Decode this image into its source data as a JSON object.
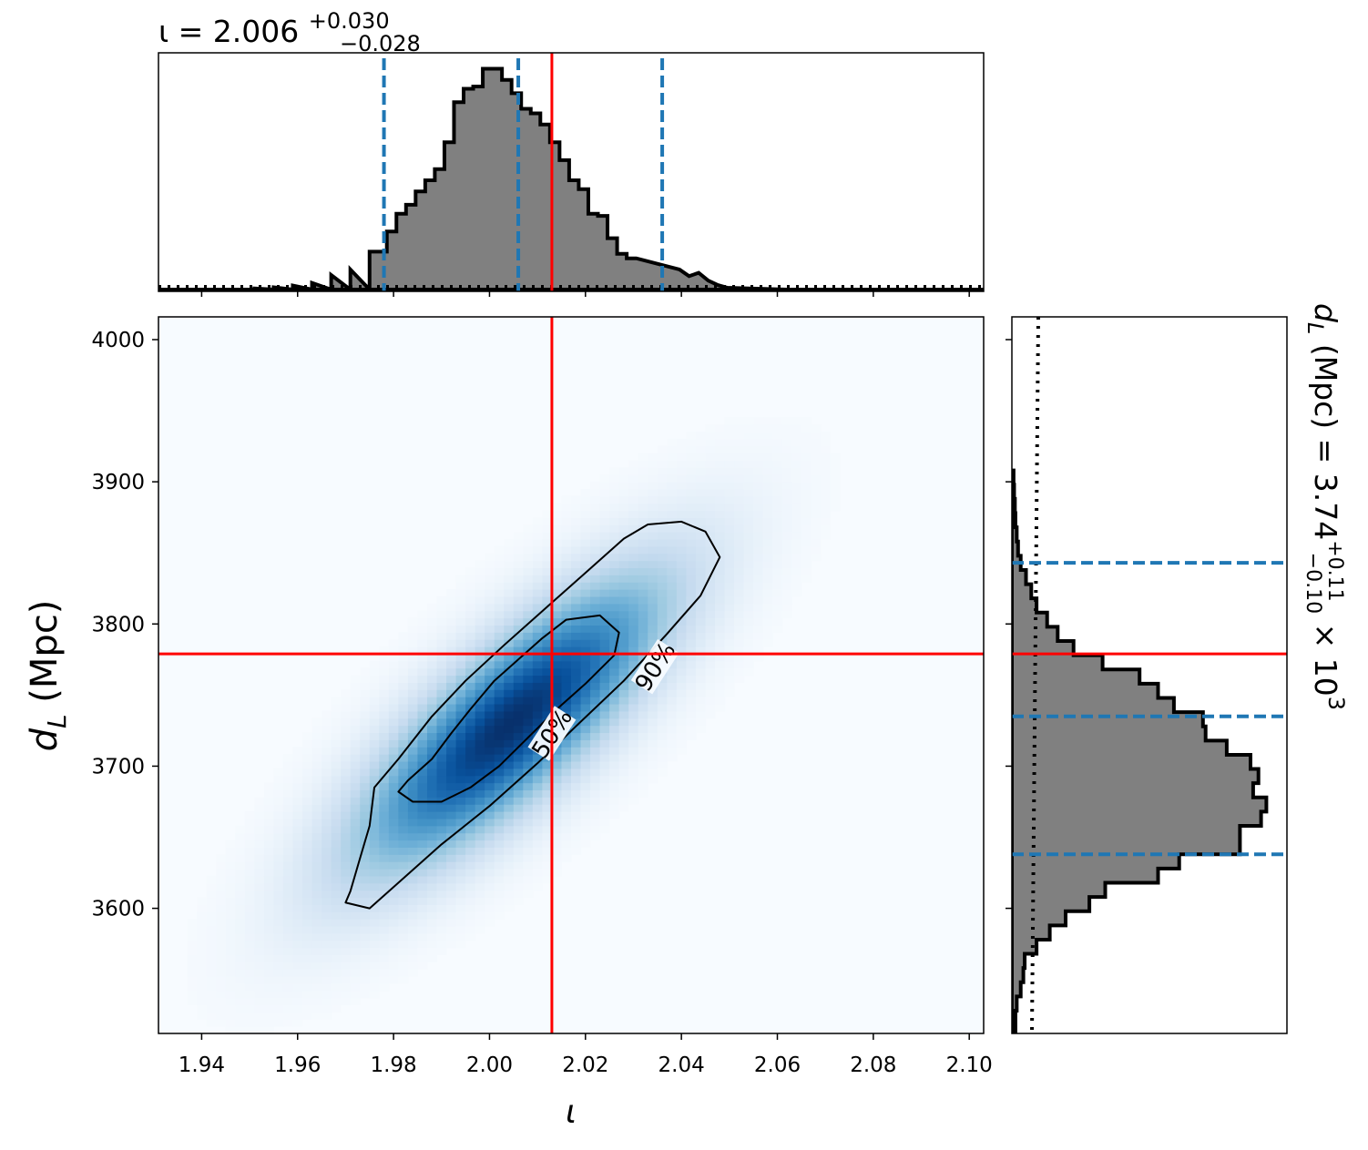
{
  "chart_data": [
    {
      "panel": "marginal-iota",
      "type": "histogram",
      "title_parts": {
        "prefix": "ι = 2.006",
        "sup": "+0.030",
        "sub": "−0.028"
      },
      "xlim": [
        1.931,
        2.103
      ],
      "xticks": [
        1.94,
        1.96,
        1.98,
        2.0,
        2.02,
        2.04,
        2.06,
        2.08,
        2.1
      ],
      "bin_edges_start": 1.9786,
      "bin_width": 0.002,
      "heights": [
        0.26,
        0.34,
        0.38,
        0.44,
        0.49,
        0.54,
        0.66,
        0.84,
        0.9,
        0.91,
        0.99,
        0.99,
        0.94,
        0.88,
        0.81,
        0.79,
        0.74,
        0.66,
        0.58,
        0.49,
        0.45,
        0.34,
        0.33,
        0.23,
        0.16,
        0.14
      ],
      "left_tail": [
        [
          1.951,
          0.005
        ],
        [
          1.955,
          0.01
        ],
        [
          1.959,
          0.018
        ],
        [
          1.963,
          0.03
        ],
        [
          1.967,
          0.065
        ],
        [
          1.971,
          0.09
        ],
        [
          1.975,
          0.17
        ]
      ],
      "right_tail": [
        [
          2.0396,
          0.09
        ],
        [
          2.0416,
          0.06
        ],
        [
          2.0436,
          0.075
        ],
        [
          2.0456,
          0.04
        ],
        [
          2.0476,
          0.02
        ],
        [
          2.0496,
          0.008
        ],
        [
          2.0556,
          0.004
        ]
      ],
      "quantiles": [
        1.978,
        2.006,
        2.036
      ],
      "truth": 2.013,
      "prior_level": 0.012
    },
    {
      "panel": "joint-density",
      "type": "heatmap",
      "xlabel": "ι",
      "ylabel_parts": {
        "base": "d",
        "sub": "L",
        "rest": " (Mpc)"
      },
      "xlim": [
        1.931,
        2.103
      ],
      "ylim": [
        3512,
        4016
      ],
      "xticks": [
        1.94,
        1.96,
        1.98,
        2.0,
        2.02,
        2.04,
        2.06,
        2.08,
        2.1
      ],
      "yticks": [
        3600,
        3700,
        3800,
        3900,
        4000
      ],
      "density": {
        "mean_x": 2.0045,
        "mean_y": 3730,
        "sd_x": 0.0195,
        "sd_y": 62,
        "corr": 0.8
      },
      "contours": [
        {
          "label": "50%",
          "points": [
            [
              1.983,
              3690
            ],
            [
              1.988,
              3705
            ],
            [
              1.992,
              3723
            ],
            [
              1.996,
              3740
            ],
            [
              2.001,
              3760
            ],
            [
              2.006,
              3775
            ],
            [
              2.011,
              3790
            ],
            [
              2.016,
              3803
            ],
            [
              2.023,
              3806
            ],
            [
              2.027,
              3794
            ],
            [
              2.026,
              3778
            ],
            [
              2.02,
              3758
            ],
            [
              2.014,
              3740
            ],
            [
              2.008,
              3720
            ],
            [
              2.002,
              3700
            ],
            [
              1.996,
              3685
            ],
            [
              1.99,
              3675
            ],
            [
              1.984,
              3675
            ],
            [
              1.981,
              3682
            ]
          ]
        },
        {
          "label": "90%",
          "points": [
            [
              1.971,
              3612
            ],
            [
              1.973,
              3635
            ],
            [
              1.975,
              3658
            ],
            [
              1.976,
              3685
            ],
            [
              1.981,
              3705
            ],
            [
              1.988,
              3735
            ],
            [
              1.995,
              3760
            ],
            [
              2.003,
              3785
            ],
            [
              2.012,
              3812
            ],
            [
              2.02,
              3836
            ],
            [
              2.028,
              3860
            ],
            [
              2.033,
              3870
            ],
            [
              2.04,
              3872
            ],
            [
              2.045,
              3865
            ],
            [
              2.048,
              3847
            ],
            [
              2.044,
              3820
            ],
            [
              2.037,
              3793
            ],
            [
              2.028,
              3760
            ],
            [
              2.018,
              3728
            ],
            [
              2.01,
              3702
            ],
            [
              2.0,
              3672
            ],
            [
              1.99,
              3645
            ],
            [
              1.981,
              3618
            ],
            [
              1.975,
              3600
            ],
            [
              1.97,
              3604
            ]
          ]
        }
      ],
      "contour_labels": [
        {
          "text": "50%",
          "x": 2.013,
          "y": 3723,
          "angle": -57
        },
        {
          "text": "90%",
          "x": 2.0345,
          "y": 3770,
          "angle": -57
        }
      ],
      "truth": {
        "x": 2.013,
        "y": 3779
      }
    },
    {
      "panel": "marginal-dL",
      "type": "histogram",
      "title_parts": {
        "prefix": "d",
        "sub": "L",
        "mid": " (Mpc) = 3.74",
        "sup": "+0.11",
        "sub2": "−0.10",
        "suffix": " × 10",
        "exp": "3"
      },
      "ylim": [
        3512,
        4016
      ],
      "yticks": [
        3600,
        3700,
        3800,
        3900,
        4000
      ],
      "bin_edges_start": 3508,
      "bin_width": 10,
      "heights": [
        0.01,
        0.01,
        0.015,
        0.03,
        0.04,
        0.045,
        0.09,
        0.14,
        0.2,
        0.29,
        0.35,
        0.55,
        0.63,
        0.86,
        0.86,
        0.94,
        0.96,
        0.91,
        0.93,
        0.9,
        0.81,
        0.73,
        0.72,
        0.61,
        0.55,
        0.48,
        0.34,
        0.23,
        0.17,
        0.13,
        0.09,
        0.07,
        0.05,
        0.03,
        0.02,
        0.015,
        0.01,
        0.008,
        0.005,
        0.003
      ],
      "quantiles": [
        3638,
        3735,
        3843
      ],
      "truth": 3779,
      "prior_level": 0.075
    }
  ],
  "colors": {
    "hist_fill": "#808080",
    "quantile_line": "#1f77b4",
    "truth_line": "#ff0000",
    "cmap_light": "#f7fbff",
    "cmap_dark": "#08306b"
  }
}
